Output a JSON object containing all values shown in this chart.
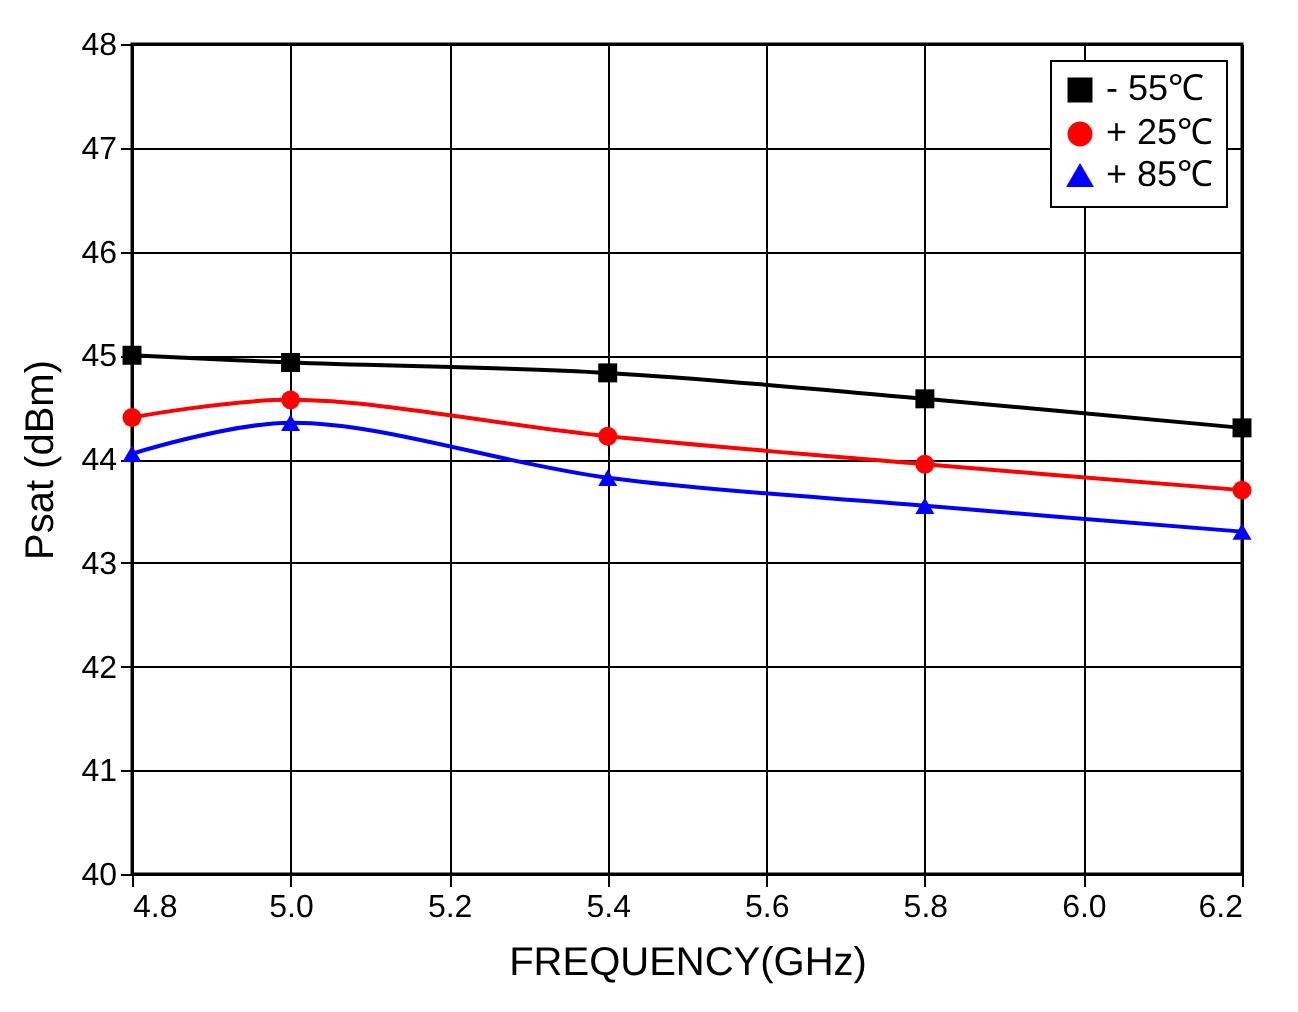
{
  "chart_data": {
    "type": "line",
    "xlabel": "FREQUENCY(GHz)",
    "ylabel": "Psat (dBm)",
    "x": [
      4.8,
      5.0,
      5.4,
      5.8,
      6.2
    ],
    "series": [
      {
        "name": "- 55℃",
        "color": "#000000",
        "marker": "square",
        "values": [
          45.0,
          44.93,
          44.83,
          44.58,
          44.3
        ]
      },
      {
        "name": "+ 25℃",
        "color": "#ff0000",
        "marker": "circle",
        "values": [
          44.4,
          44.57,
          44.22,
          43.95,
          43.7
        ]
      },
      {
        "name": "+ 85℃",
        "color": "#0000ff",
        "marker": "triangle",
        "values": [
          44.05,
          44.35,
          43.82,
          43.55,
          43.3
        ]
      }
    ],
    "xlim": [
      4.8,
      6.2
    ],
    "xticks": [
      4.8,
      {
        "value": 5.0,
        "label": "5.0"
      },
      5.2,
      5.4,
      5.6,
      5.8,
      {
        "value": 6.0,
        "label": "6.0"
      },
      6.2
    ],
    "ylim": [
      40,
      48
    ],
    "yticks": [
      40,
      41,
      42,
      43,
      44,
      45,
      46,
      47,
      48
    ],
    "grid": true,
    "legend": "top right",
    "line_style": "solid"
  }
}
